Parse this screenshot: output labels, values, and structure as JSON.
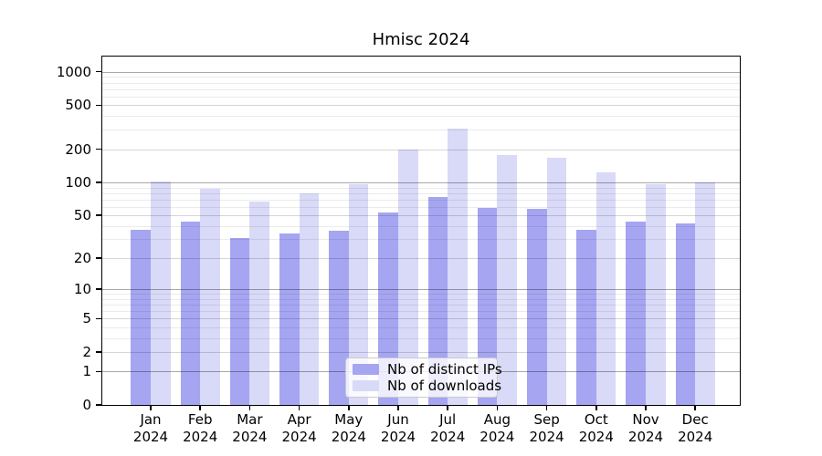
{
  "title": "Hmisc 2024",
  "chart_data": {
    "type": "bar",
    "title": "Hmisc 2024",
    "year_label": "2024",
    "categories": [
      "Jan",
      "Feb",
      "Mar",
      "Apr",
      "May",
      "Jun",
      "Jul",
      "Aug",
      "Sep",
      "Oct",
      "Nov",
      "Dec"
    ],
    "series": [
      {
        "name": "Nb of distinct IPs",
        "color": "#a5a5f2",
        "values": [
          37,
          44,
          31,
          34,
          36,
          53,
          73,
          59,
          57,
          37,
          44,
          42
        ]
      },
      {
        "name": "Nb of downloads",
        "color": "#d9d9f8",
        "values": [
          102,
          87,
          67,
          80,
          97,
          200,
          310,
          178,
          167,
          124,
          97,
          100
        ]
      }
    ],
    "y_scale": "log1p",
    "y_ticks": [
      0,
      1,
      2,
      5,
      10,
      20,
      50,
      100,
      200,
      500,
      1000
    ],
    "y_minor_ticks": "1-10 step 1, 10-100 step 10, 100-1000 step 100",
    "ylim": [
      0,
      1372
    ],
    "grid": true,
    "legend_position": "lower-center-inside",
    "axis_color": "#000000"
  }
}
